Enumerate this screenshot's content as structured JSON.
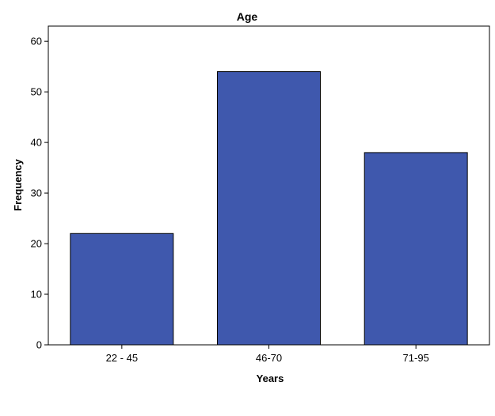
{
  "chart_data": {
    "type": "bar",
    "title": "Age",
    "xlabel": "Years",
    "ylabel": "Frequency",
    "categories": [
      "22 - 45",
      "46-70",
      "71-95"
    ],
    "values": [
      22,
      54,
      38
    ],
    "ylim": [
      0,
      63
    ],
    "yticks": [
      "0",
      "10",
      "20",
      "30",
      "40",
      "50",
      "60"
    ],
    "grid": false,
    "bar_color": "#3f58ad",
    "bar_edge_color": "#000000",
    "background": "#ffffff"
  }
}
